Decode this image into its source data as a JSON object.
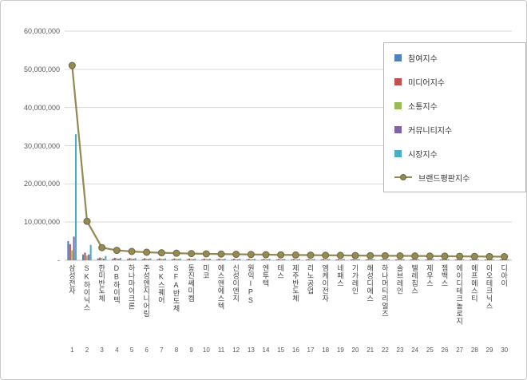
{
  "chart": {
    "background": "#ffffff",
    "border_color": "#c9c9c9",
    "grid_color": "#d9d9d9",
    "axis_color": "#bfbfbf",
    "text_color": "#595959"
  },
  "chart_data": {
    "type": "bar",
    "subtype": "grouped-bars-with-line-overlay",
    "title": "",
    "xlabel": "",
    "ylabel": "",
    "ylim": [
      0,
      60000000
    ],
    "grid": true,
    "legend_position": "top-right",
    "yticks": [
      {
        "value": 0,
        "label": "-"
      },
      {
        "value": 10000000,
        "label": "10,000,000"
      },
      {
        "value": 20000000,
        "label": "20,000,000"
      },
      {
        "value": 30000000,
        "label": "30,000,000"
      },
      {
        "value": 40000000,
        "label": "40,000,000"
      },
      {
        "value": 50000000,
        "label": "50,000,000"
      },
      {
        "value": 60000000,
        "label": "60,000,000"
      }
    ],
    "categories": [
      "삼성전자",
      "SK하이닉스",
      "한미반도체",
      "DB하이텍",
      "하나마이크론",
      "주성엔지니어링",
      "SK스퀘어",
      "SFA반도체",
      "동진쎄미켐",
      "미코",
      "에스앤에스텍",
      "신성이엔지",
      "원익IPS",
      "엔투텍",
      "테스",
      "제주반도체",
      "리노공업",
      "엠케이전자",
      "네패스",
      "기가레인",
      "해성디에스",
      "하나머티리얼즈",
      "솔브레인",
      "텔레칩스",
      "제우스",
      "젬백스",
      "에이디테크놀로지",
      "에프에스티",
      "이오테크닉스",
      "디아이"
    ],
    "rank_labels": [
      "1",
      "2",
      "3",
      "4",
      "5",
      "6",
      "7",
      "8",
      "9",
      "10",
      "11",
      "12",
      "13",
      "14",
      "15",
      "16",
      "17",
      "18",
      "19",
      "20",
      "21",
      "22",
      "23",
      "24",
      "25",
      "26",
      "27",
      "28",
      "29",
      "30"
    ],
    "series": [
      {
        "name": "참여지수",
        "type": "bar",
        "color": "#4F81BD",
        "values": [
          5000000,
          1500000,
          500000,
          390000,
          345000,
          315000,
          293000,
          278000,
          263000,
          252000,
          243000,
          234000,
          227000,
          219000,
          213000,
          207000,
          201000,
          195000,
          191000,
          186000,
          182000,
          177000,
          173000,
          168000,
          164000,
          159000,
          155000,
          150000,
          146000,
          141000
        ]
      },
      {
        "name": "미디어지수",
        "type": "bar",
        "color": "#C0504D",
        "values": [
          4200000,
          2000000,
          700000,
          650000,
          575000,
          525000,
          488000,
          463000,
          438000,
          420000,
          405000,
          390000,
          378000,
          365000,
          355000,
          345000,
          335000,
          325000,
          318000,
          310000,
          303000,
          295000,
          288000,
          280000,
          273000,
          265000,
          258000,
          250000,
          243000,
          235000
        ]
      },
      {
        "name": "소통지수",
        "type": "bar",
        "color": "#9BBB59",
        "values": [
          2600000,
          1200000,
          600000,
          520000,
          460000,
          420000,
          390000,
          370000,
          350000,
          336000,
          324000,
          312000,
          302000,
          292000,
          284000,
          276000,
          268000,
          260000,
          254000,
          248000,
          242000,
          236000,
          230000,
          224000,
          218000,
          212000,
          206000,
          200000,
          194000,
          188000
        ]
      },
      {
        "name": "커뮤니티지수",
        "type": "bar",
        "color": "#8064A2",
        "values": [
          6200000,
          1500000,
          400000,
          390000,
          345000,
          315000,
          293000,
          278000,
          263000,
          252000,
          243000,
          234000,
          227000,
          219000,
          213000,
          207000,
          201000,
          195000,
          191000,
          186000,
          182000,
          177000,
          173000,
          168000,
          164000,
          159000,
          155000,
          150000,
          146000,
          141000
        ]
      },
      {
        "name": "시장지수",
        "type": "bar",
        "color": "#4BACC6",
        "values": [
          33000000,
          4000000,
          1100000,
          650000,
          575000,
          525000,
          488000,
          463000,
          438000,
          420000,
          405000,
          390000,
          378000,
          365000,
          355000,
          345000,
          335000,
          325000,
          318000,
          310000,
          303000,
          295000,
          288000,
          280000,
          273000,
          265000,
          258000,
          250000,
          243000,
          235000
        ]
      },
      {
        "name": "브랜드평판지수",
        "type": "line",
        "color": "#948A54",
        "marker_edge": "#6E6742",
        "values": [
          51000000,
          10200000,
          3300000,
          2600000,
          2300000,
          2100000,
          1950000,
          1850000,
          1750000,
          1680000,
          1620000,
          1560000,
          1510000,
          1460000,
          1420000,
          1380000,
          1340000,
          1300000,
          1270000,
          1240000,
          1210000,
          1180000,
          1150000,
          1120000,
          1090000,
          1060000,
          1030000,
          1000000,
          970000,
          940000
        ]
      }
    ]
  }
}
